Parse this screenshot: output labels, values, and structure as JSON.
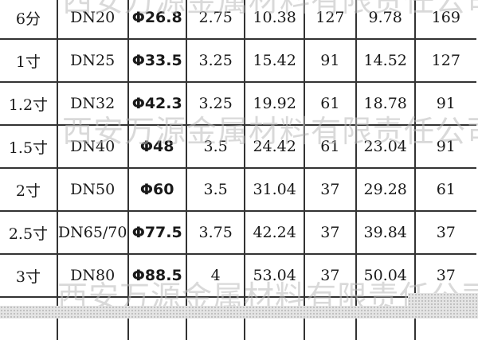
{
  "table": {
    "rows": [
      [
        "6分",
        "DN20",
        "Φ26.8",
        "2.75",
        "10.38",
        "127",
        "9.78",
        "169"
      ],
      [
        "1寸",
        "DN25",
        "Φ33.5",
        "3.25",
        "15.42",
        "91",
        "14.52",
        "127"
      ],
      [
        "1.2寸",
        "DN32",
        "Φ42.3",
        "3.25",
        "19.92",
        "61",
        "18.78",
        "91"
      ],
      [
        "1.5寸",
        "DN40",
        "Φ48",
        "3.5",
        "24.42",
        "61",
        "23.04",
        "91"
      ],
      [
        "2寸",
        "DN50",
        "Φ60",
        "3.5",
        "31.04",
        "37",
        "29.28",
        "61"
      ],
      [
        "2.5寸",
        "DN65/70",
        "Φ77.5",
        "3.75",
        "42.24",
        "37",
        "39.84",
        "37"
      ],
      [
        "3寸",
        "DN80",
        "Φ88.5",
        "4",
        "53.04",
        "37",
        "50.04",
        "37"
      ]
    ]
  },
  "watermark": "西安万源金属材料有限责任公司"
}
